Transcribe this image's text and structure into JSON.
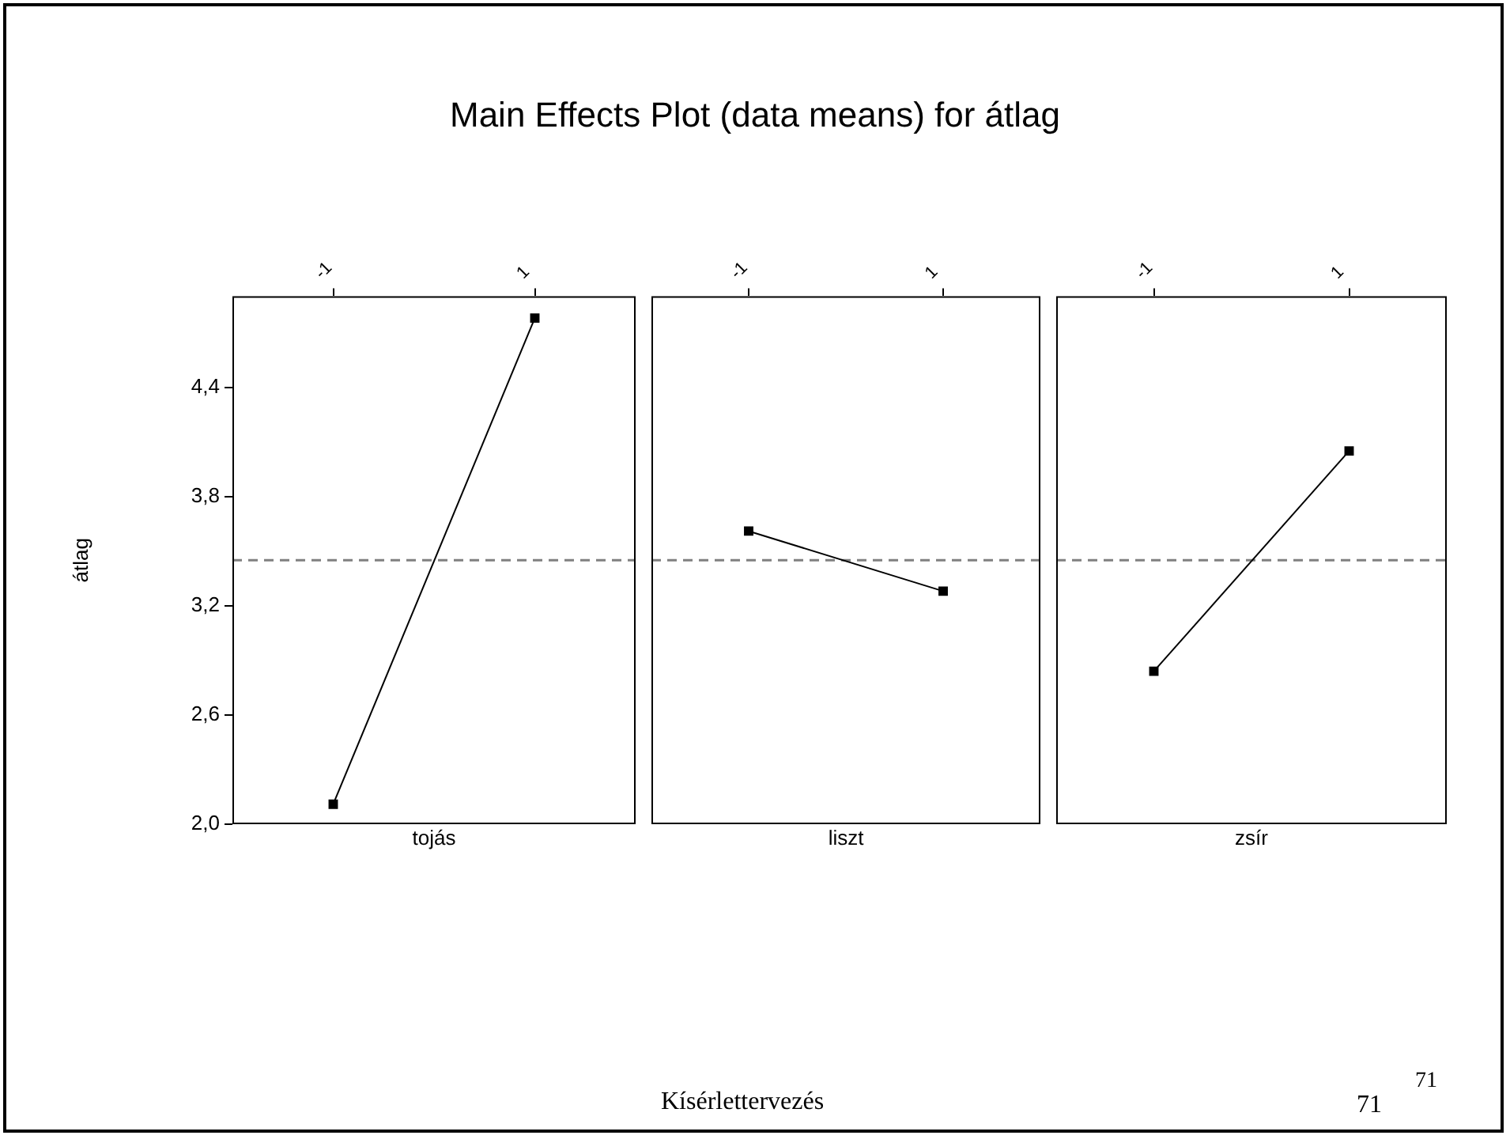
{
  "chart_data": [
    {
      "type": "line",
      "title": "Main Effects Plot (data means) for átlag",
      "categories": [
        "-1",
        "1"
      ],
      "values": [
        2.11,
        4.78
      ],
      "color": "#000000",
      "xlabel": "tojás",
      "ylabel": "átlag",
      "ylim": [
        2.0,
        4.9
      ],
      "yticks": [
        {
          "value": 2.0,
          "label": "2,0"
        },
        {
          "value": 2.6,
          "label": "2,6"
        },
        {
          "value": 3.2,
          "label": "3,2"
        },
        {
          "value": 3.8,
          "label": "3,8"
        },
        {
          "value": 4.4,
          "label": "4,4"
        }
      ],
      "ref_lines": [
        {
          "axis": "y",
          "value": 3.45,
          "color": "#808080",
          "line_style": "dashed"
        }
      ],
      "marker": "square",
      "annotations": [
        "Kísérlettervezés",
        "71",
        "71"
      ]
    },
    {
      "type": "line",
      "categories": [
        "-1",
        "1"
      ],
      "values": [
        3.61,
        3.28
      ],
      "color": "#000000",
      "xlabel": "liszt",
      "ylim": [
        2.0,
        4.9
      ],
      "ref_lines": [
        {
          "axis": "y",
          "value": 3.45,
          "color": "#808080",
          "line_style": "dashed"
        }
      ],
      "marker": "square",
      "tick_labels": "x"
    },
    {
      "type": "line",
      "categories": [
        "-1",
        "1"
      ],
      "values": [
        2.84,
        4.05
      ],
      "color": "#000000",
      "xlabel": "zsír",
      "ylim": [
        2.0,
        4.9
      ],
      "ref_lines": [
        {
          "axis": "y",
          "value": 3.45,
          "color": "#808080",
          "line_style": "dashed"
        }
      ],
      "marker": "square",
      "tick_labels": "x"
    }
  ]
}
